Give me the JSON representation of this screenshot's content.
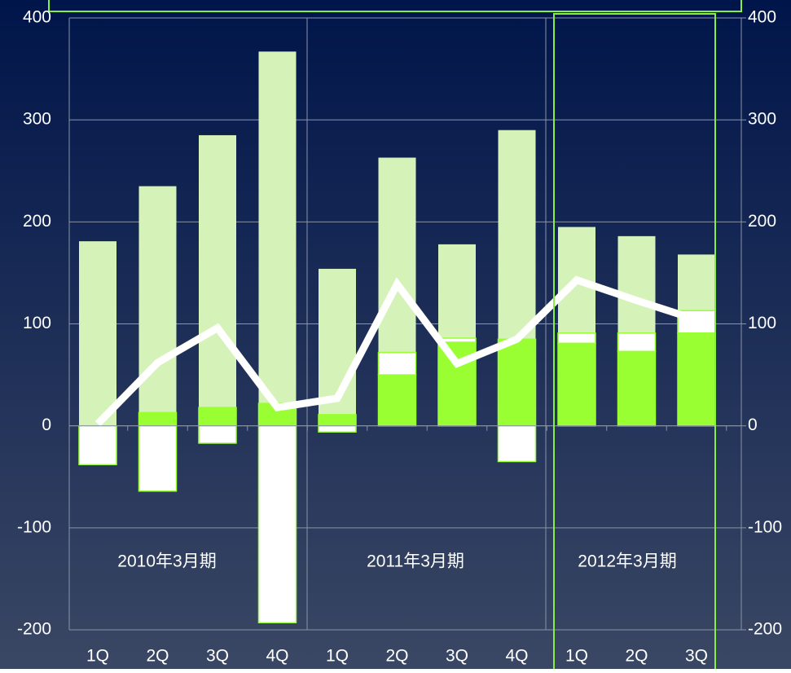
{
  "chart_data": {
    "type": "bar",
    "categories": [
      "1Q",
      "2Q",
      "3Q",
      "4Q",
      "1Q",
      "2Q",
      "3Q",
      "4Q",
      "1Q",
      "2Q",
      "3Q"
    ],
    "group_labels": [
      "2010年3月期",
      "2011年3月期",
      "2012年3月期"
    ],
    "series": [
      {
        "color": "#d5f2b8",
        "kind": "background",
        "values": [
          181,
          235,
          285,
          367,
          154,
          263,
          178,
          290,
          195,
          186,
          168
        ]
      },
      {
        "color": "#99ff33",
        "kind": "stack",
        "values": [
          0,
          13,
          18,
          22,
          11,
          50,
          82,
          85,
          81,
          73,
          91
        ]
      },
      {
        "color": "#ffffff",
        "kind": "stack",
        "values": [
          -38,
          -64,
          -17,
          -193,
          -6,
          22,
          4,
          -35,
          10,
          18,
          22
        ]
      },
      {
        "color": "#ffffff",
        "kind": "line",
        "axis": "y2",
        "values": [
          2,
          62,
          96,
          18,
          27,
          139,
          61,
          85,
          143,
          123,
          104
        ]
      }
    ],
    "ylim": [
      -200,
      400
    ],
    "yticks": [
      -200,
      -100,
      0,
      100,
      200,
      300,
      400
    ],
    "y2lim": [
      -200,
      400
    ],
    "y2ticks": [
      -200,
      -100,
      0,
      100,
      200,
      300,
      400
    ],
    "grid": true,
    "highlight_color": "#88ee44"
  }
}
